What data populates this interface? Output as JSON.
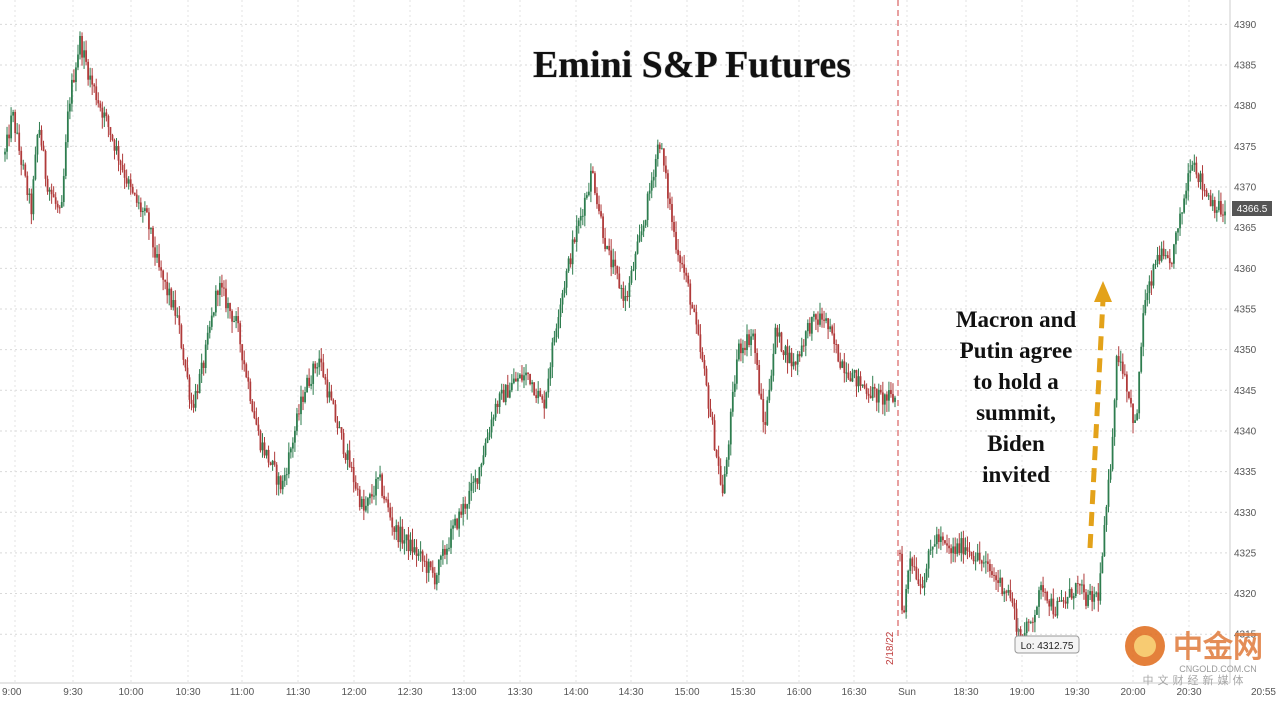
{
  "chart_data": {
    "type": "candlestick",
    "title": "Emini S&P Futures",
    "ylim": [
      4309,
      4393
    ],
    "y_ticks": [
      4315,
      4320,
      4325,
      4330,
      4335,
      4340,
      4345,
      4350,
      4355,
      4360,
      4365,
      4370,
      4375,
      4380,
      4385,
      4390
    ],
    "x_ticks": [
      "9:00",
      "9:30",
      "10:00",
      "10:30",
      "11:00",
      "11:30",
      "12:00",
      "12:30",
      "13:00",
      "13:30",
      "14:00",
      "14:30",
      "15:00",
      "15:30",
      "16:00",
      "16:30",
      "Sun",
      "18:30",
      "19:00",
      "19:30",
      "20:00",
      "20:30",
      "20:55"
    ],
    "session_break_label": "2/18/22",
    "current_price_label": "4366.5",
    "low_label": "Lo: 4312.75",
    "annotation": [
      "Macron and",
      "Putin agree",
      "to hold a",
      "summit,",
      "Biden",
      "invited"
    ],
    "colors": {
      "up": "#2e7d4f",
      "down": "#b03a3a",
      "arrow": "#e3a21a",
      "price_tag": "#555555"
    },
    "price_path": [
      [
        9.0,
        4374
      ],
      [
        9.1,
        4379
      ],
      [
        9.2,
        4374
      ],
      [
        9.35,
        4367
      ],
      [
        9.45,
        4378
      ],
      [
        9.55,
        4371
      ],
      [
        9.75,
        4366
      ],
      [
        9.85,
        4380
      ],
      [
        10.0,
        4388
      ],
      [
        10.15,
        4383
      ],
      [
        10.4,
        4377
      ],
      [
        10.7,
        4369
      ],
      [
        10.9,
        4366
      ],
      [
        11.05,
        4360
      ],
      [
        11.3,
        4354
      ],
      [
        11.5,
        4343
      ],
      [
        11.65,
        4348
      ],
      [
        11.85,
        4358
      ],
      [
        12.1,
        4353
      ],
      [
        12.4,
        4339
      ],
      [
        12.7,
        4333
      ],
      [
        13.0,
        4345
      ],
      [
        13.2,
        4349
      ],
      [
        13.4,
        4342
      ],
      [
        13.6,
        4336
      ],
      [
        13.8,
        4330
      ],
      [
        14.0,
        4334
      ],
      [
        14.2,
        4328
      ],
      [
        14.5,
        4325
      ],
      [
        14.75,
        4322
      ],
      [
        15.0,
        4328
      ],
      [
        15.3,
        4334
      ],
      [
        15.55,
        4343
      ],
      [
        15.8,
        4346
      ],
      [
        16.0,
        4347
      ],
      [
        16.2,
        4343
      ],
      [
        16.4,
        4355
      ],
      [
        16.6,
        4363
      ],
      [
        16.85,
        4372
      ],
      [
        17.05,
        4362
      ],
      [
        17.3,
        4356
      ],
      [
        17.55,
        4366
      ],
      [
        17.75,
        4376
      ],
      [
        17.95,
        4364
      ],
      [
        18.15,
        4357
      ],
      [
        18.35,
        4347
      ],
      [
        18.6,
        4332
      ],
      [
        18.8,
        4350
      ],
      [
        19.0,
        4352
      ],
      [
        19.15,
        4340
      ],
      [
        19.3,
        4352
      ],
      [
        19.55,
        4348
      ],
      [
        19.75,
        4353
      ],
      [
        19.95,
        4354
      ],
      [
        20.15,
        4349
      ],
      [
        20.4,
        4346
      ],
      [
        20.7,
        4344
      ],
      [
        20.9,
        4344
      ],
      [
        20.92,
        4325
      ],
      [
        20.96,
        4316
      ],
      [
        21.05,
        4325
      ],
      [
        21.2,
        4321
      ],
      [
        21.4,
        4327
      ],
      [
        21.6,
        4325
      ],
      [
        21.8,
        4326
      ],
      [
        22.0,
        4324
      ],
      [
        22.2,
        4322
      ],
      [
        22.4,
        4320
      ],
      [
        22.55,
        4314
      ],
      [
        22.7,
        4317
      ],
      [
        22.85,
        4321
      ],
      [
        23.0,
        4318
      ],
      [
        23.15,
        4319
      ],
      [
        23.3,
        4321
      ],
      [
        23.45,
        4319
      ],
      [
        23.6,
        4320
      ],
      [
        23.75,
        4335
      ],
      [
        23.85,
        4350
      ],
      [
        23.95,
        4347
      ],
      [
        24.1,
        4340
      ],
      [
        24.2,
        4355
      ],
      [
        24.3,
        4358
      ],
      [
        24.4,
        4362
      ],
      [
        24.55,
        4360
      ],
      [
        24.7,
        4366
      ],
      [
        24.85,
        4374
      ],
      [
        25.0,
        4370
      ],
      [
        25.15,
        4368
      ],
      [
        25.3,
        4366.5
      ]
    ]
  }
}
